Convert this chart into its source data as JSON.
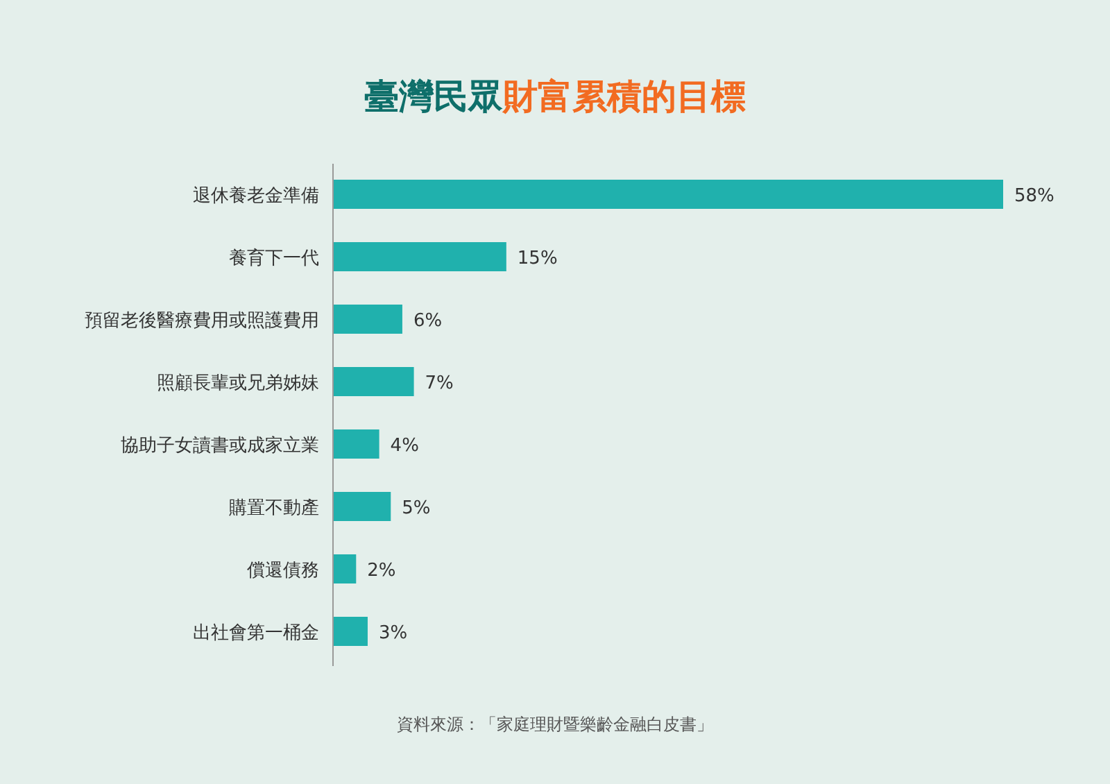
{
  "chart_data": {
    "type": "bar",
    "orientation": "horizontal",
    "title": "臺灣民眾財富累積的目標",
    "categories": [
      "退休養老金準備",
      "養育下一代",
      "預留老後醫療費用或照護費用",
      "照顧長輩或兄弟姊妹",
      "協助子女讀書或成家立業",
      "購置不動產",
      "償還債務",
      "出社會第一桶金"
    ],
    "values": [
      58,
      15,
      6,
      7,
      4,
      5,
      2,
      3
    ],
    "value_labels": [
      "58%",
      "15%",
      "6%",
      "7%",
      "4%",
      "5%",
      "2%",
      "3%"
    ],
    "color": "#20b1ad",
    "annotations": [
      "資料來源：「家庭理財暨樂齡金融白皮書」"
    ]
  }
}
